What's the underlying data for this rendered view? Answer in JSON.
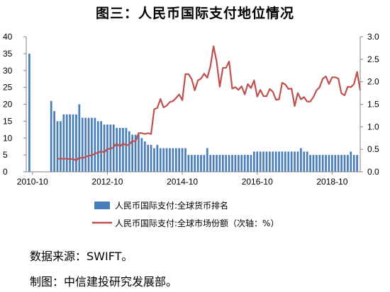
{
  "title": "图三：人民币国际支付地位情况",
  "source_note": "数据来源：SWIFT。",
  "maker_note": "制图：中信建投研究发展部。",
  "colors": {
    "bars": "#4a7ebb",
    "line": "#c0504d",
    "axis": "#868686"
  },
  "chart_data": {
    "type": "bar",
    "x_tick_labels": [
      "2010-10",
      "2012-10",
      "2014-10",
      "2016-10",
      "2018-10"
    ],
    "x_tick_months": [
      "2010-10",
      "2012-10",
      "2014-10",
      "2016-10",
      "2018-10"
    ],
    "x_range": [
      "2010-08",
      "2019-07"
    ],
    "y_left": {
      "ylim": [
        0,
        40
      ],
      "ticks": [
        "0",
        "5",
        "10",
        "15",
        "20",
        "25",
        "30",
        "35",
        "40"
      ]
    },
    "y_right": {
      "ylim": [
        0,
        3.0
      ],
      "ticks": [
        "0.0",
        "0.5",
        "1.0",
        "1.5",
        "2.0",
        "2.5",
        "3.0"
      ]
    },
    "legend_position": "bottom",
    "grid": false,
    "series": [
      {
        "name": "人民币国际支付:全球货币排名",
        "type": "bar",
        "axis": "left",
        "points": [
          [
            "2010-09",
            35
          ],
          [
            "2011-04",
            21
          ],
          [
            "2011-05",
            18
          ],
          [
            "2011-06",
            15
          ],
          [
            "2011-07",
            15
          ],
          [
            "2011-08",
            17
          ],
          [
            "2011-09",
            17
          ],
          [
            "2011-10",
            17
          ],
          [
            "2011-11",
            17
          ],
          [
            "2011-12",
            17
          ],
          [
            "2012-01",
            20
          ],
          [
            "2012-02",
            16
          ],
          [
            "2012-03",
            16
          ],
          [
            "2012-04",
            16
          ],
          [
            "2012-05",
            16
          ],
          [
            "2012-06",
            16
          ],
          [
            "2012-07",
            15
          ],
          [
            "2012-08",
            15
          ],
          [
            "2012-09",
            14
          ],
          [
            "2012-10",
            14
          ],
          [
            "2012-11",
            14
          ],
          [
            "2012-12",
            14
          ],
          [
            "2013-01",
            13
          ],
          [
            "2013-02",
            13
          ],
          [
            "2013-03",
            13
          ],
          [
            "2013-04",
            13
          ],
          [
            "2013-05",
            12
          ],
          [
            "2013-06",
            11
          ],
          [
            "2013-07",
            11
          ],
          [
            "2013-08",
            11
          ],
          [
            "2013-09",
            10
          ],
          [
            "2013-10",
            9
          ],
          [
            "2013-11",
            8
          ],
          [
            "2013-12",
            8
          ],
          [
            "2014-01",
            7
          ],
          [
            "2014-02",
            8
          ],
          [
            "2014-03",
            7
          ],
          [
            "2014-04",
            7
          ],
          [
            "2014-05",
            7
          ],
          [
            "2014-06",
            7
          ],
          [
            "2014-07",
            7
          ],
          [
            "2014-08",
            7
          ],
          [
            "2014-09",
            7
          ],
          [
            "2014-10",
            7
          ],
          [
            "2014-11",
            7
          ],
          [
            "2014-12",
            5
          ],
          [
            "2015-01",
            5
          ],
          [
            "2015-02",
            5
          ],
          [
            "2015-03",
            5
          ],
          [
            "2015-04",
            5
          ],
          [
            "2015-05",
            5
          ],
          [
            "2015-06",
            7
          ],
          [
            "2015-07",
            5
          ],
          [
            "2015-08",
            5
          ],
          [
            "2015-09",
            5
          ],
          [
            "2015-10",
            5
          ],
          [
            "2015-11",
            5
          ],
          [
            "2015-12",
            5
          ],
          [
            "2016-01",
            5
          ],
          [
            "2016-02",
            5
          ],
          [
            "2016-03",
            5
          ],
          [
            "2016-04",
            5
          ],
          [
            "2016-05",
            5
          ],
          [
            "2016-06",
            5
          ],
          [
            "2016-07",
            5
          ],
          [
            "2016-08",
            5
          ],
          [
            "2016-09",
            6
          ],
          [
            "2016-10",
            6
          ],
          [
            "2016-11",
            6
          ],
          [
            "2016-12",
            6
          ],
          [
            "2017-01",
            6
          ],
          [
            "2017-02",
            6
          ],
          [
            "2017-03",
            6
          ],
          [
            "2017-04",
            6
          ],
          [
            "2017-05",
            6
          ],
          [
            "2017-06",
            6
          ],
          [
            "2017-07",
            6
          ],
          [
            "2017-08",
            6
          ],
          [
            "2017-09",
            6
          ],
          [
            "2017-10",
            6
          ],
          [
            "2017-11",
            6
          ],
          [
            "2017-12",
            7
          ],
          [
            "2018-01",
            6
          ],
          [
            "2018-02",
            6
          ],
          [
            "2018-03",
            5
          ],
          [
            "2018-04",
            5
          ],
          [
            "2018-05",
            5
          ],
          [
            "2018-06",
            5
          ],
          [
            "2018-07",
            5
          ],
          [
            "2018-08",
            5
          ],
          [
            "2018-09",
            5
          ],
          [
            "2018-10",
            5
          ],
          [
            "2018-11",
            5
          ],
          [
            "2018-12",
            5
          ],
          [
            "2019-01",
            5
          ],
          [
            "2019-02",
            5
          ],
          [
            "2019-03",
            5
          ],
          [
            "2019-04",
            6
          ],
          [
            "2019-05",
            5
          ],
          [
            "2019-06",
            5
          ]
        ]
      },
      {
        "name": "人民币国际支付:全球市场份额（次轴：%）",
        "type": "line",
        "axis": "right",
        "points": [
          [
            "2011-06",
            0.29
          ],
          [
            "2011-07",
            0.29
          ],
          [
            "2011-08",
            0.29
          ],
          [
            "2011-09",
            0.29
          ],
          [
            "2011-10",
            0.28
          ],
          [
            "2011-11",
            0.29
          ],
          [
            "2011-12",
            0.25
          ],
          [
            "2012-01",
            0.32
          ],
          [
            "2012-02",
            0.3
          ],
          [
            "2012-03",
            0.33
          ],
          [
            "2012-04",
            0.36
          ],
          [
            "2012-05",
            0.36
          ],
          [
            "2012-06",
            0.41
          ],
          [
            "2012-07",
            0.42
          ],
          [
            "2012-08",
            0.46
          ],
          [
            "2012-09",
            0.43
          ],
          [
            "2012-10",
            0.51
          ],
          [
            "2012-11",
            0.51
          ],
          [
            "2012-12",
            0.55
          ],
          [
            "2013-01",
            0.63
          ],
          [
            "2013-02",
            0.56
          ],
          [
            "2013-03",
            0.63
          ],
          [
            "2013-04",
            0.59
          ],
          [
            "2013-05",
            0.6
          ],
          [
            "2013-06",
            0.69
          ],
          [
            "2013-07",
            0.67
          ],
          [
            "2013-08",
            0.86
          ],
          [
            "2013-09",
            0.86
          ],
          [
            "2013-10",
            0.84
          ],
          [
            "2013-11",
            0.86
          ],
          [
            "2013-12",
            0.84
          ],
          [
            "2014-01",
            1.39
          ],
          [
            "2014-02",
            1.42
          ],
          [
            "2014-03",
            1.62
          ],
          [
            "2014-04",
            1.43
          ],
          [
            "2014-05",
            1.47
          ],
          [
            "2014-06",
            1.55
          ],
          [
            "2014-07",
            1.57
          ],
          [
            "2014-08",
            1.64
          ],
          [
            "2014-09",
            1.72
          ],
          [
            "2014-10",
            1.59
          ],
          [
            "2014-11",
            2.17
          ],
          [
            "2014-12",
            2.17
          ],
          [
            "2015-01",
            2.06
          ],
          [
            "2015-02",
            1.81
          ],
          [
            "2015-03",
            2.03
          ],
          [
            "2015-04",
            2.07
          ],
          [
            "2015-05",
            2.18
          ],
          [
            "2015-06",
            2.09
          ],
          [
            "2015-07",
            2.34
          ],
          [
            "2015-08",
            2.79
          ],
          [
            "2015-09",
            2.45
          ],
          [
            "2015-10",
            1.89
          ],
          [
            "2015-11",
            2.31
          ],
          [
            "2015-12",
            2.31
          ],
          [
            "2016-01",
            2.45
          ],
          [
            "2016-02",
            1.85
          ],
          [
            "2016-03",
            1.88
          ],
          [
            "2016-04",
            1.82
          ],
          [
            "2016-05",
            1.9
          ],
          [
            "2016-06",
            1.72
          ],
          [
            "2016-07",
            1.95
          ],
          [
            "2016-08",
            1.86
          ],
          [
            "2016-09",
            2.03
          ],
          [
            "2016-10",
            1.67
          ],
          [
            "2016-11",
            1.82
          ],
          [
            "2016-12",
            1.68
          ],
          [
            "2017-01",
            1.68
          ],
          [
            "2017-02",
            1.84
          ],
          [
            "2017-03",
            1.78
          ],
          [
            "2017-04",
            1.6
          ],
          [
            "2017-05",
            1.61
          ],
          [
            "2017-06",
            1.98
          ],
          [
            "2017-07",
            1.94
          ],
          [
            "2017-08",
            1.84
          ],
          [
            "2017-09",
            1.85
          ],
          [
            "2017-10",
            1.46
          ],
          [
            "2017-11",
            1.75
          ],
          [
            "2017-12",
            1.61
          ],
          [
            "2018-01",
            1.66
          ],
          [
            "2018-02",
            1.56
          ],
          [
            "2018-03",
            1.56
          ],
          [
            "2018-04",
            1.66
          ],
          [
            "2018-05",
            1.81
          ],
          [
            "2018-06",
            1.88
          ],
          [
            "2018-07",
            2.07
          ],
          [
            "2018-08",
            2.12
          ],
          [
            "2018-09",
            1.95
          ],
          [
            "2018-10",
            2.1
          ],
          [
            "2018-11",
            2.1
          ],
          [
            "2018-12",
            2.07
          ],
          [
            "2019-01",
            1.74
          ],
          [
            "2019-02",
            1.7
          ],
          [
            "2019-03",
            1.89
          ],
          [
            "2019-04",
            1.88
          ],
          [
            "2019-05",
            1.95
          ],
          [
            "2019-06",
            2.22
          ],
          [
            "2019-07",
            1.81
          ]
        ]
      }
    ]
  }
}
